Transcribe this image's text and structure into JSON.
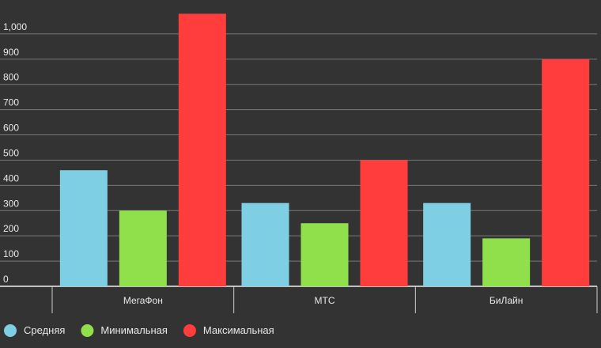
{
  "chart_data": {
    "type": "bar",
    "categories": [
      "МегаФон",
      "МТС",
      "БиЛайн"
    ],
    "series": [
      {
        "name": "Средняя",
        "color": "#7ecfe4",
        "values": [
          460,
          330,
          330
        ]
      },
      {
        "name": "Минимальная",
        "color": "#8fe04a",
        "values": [
          300,
          250,
          190
        ]
      },
      {
        "name": "Максимальная",
        "color": "#ff3d3d",
        "values": [
          1080,
          500,
          900
        ]
      }
    ],
    "ylim": [
      0,
      1100
    ],
    "yticks": [
      0,
      100,
      200,
      300,
      400,
      500,
      600,
      700,
      800,
      900,
      {
        "value": 1000,
        "label": "1,000"
      }
    ],
    "grid": true,
    "legend": "bottom-left"
  }
}
